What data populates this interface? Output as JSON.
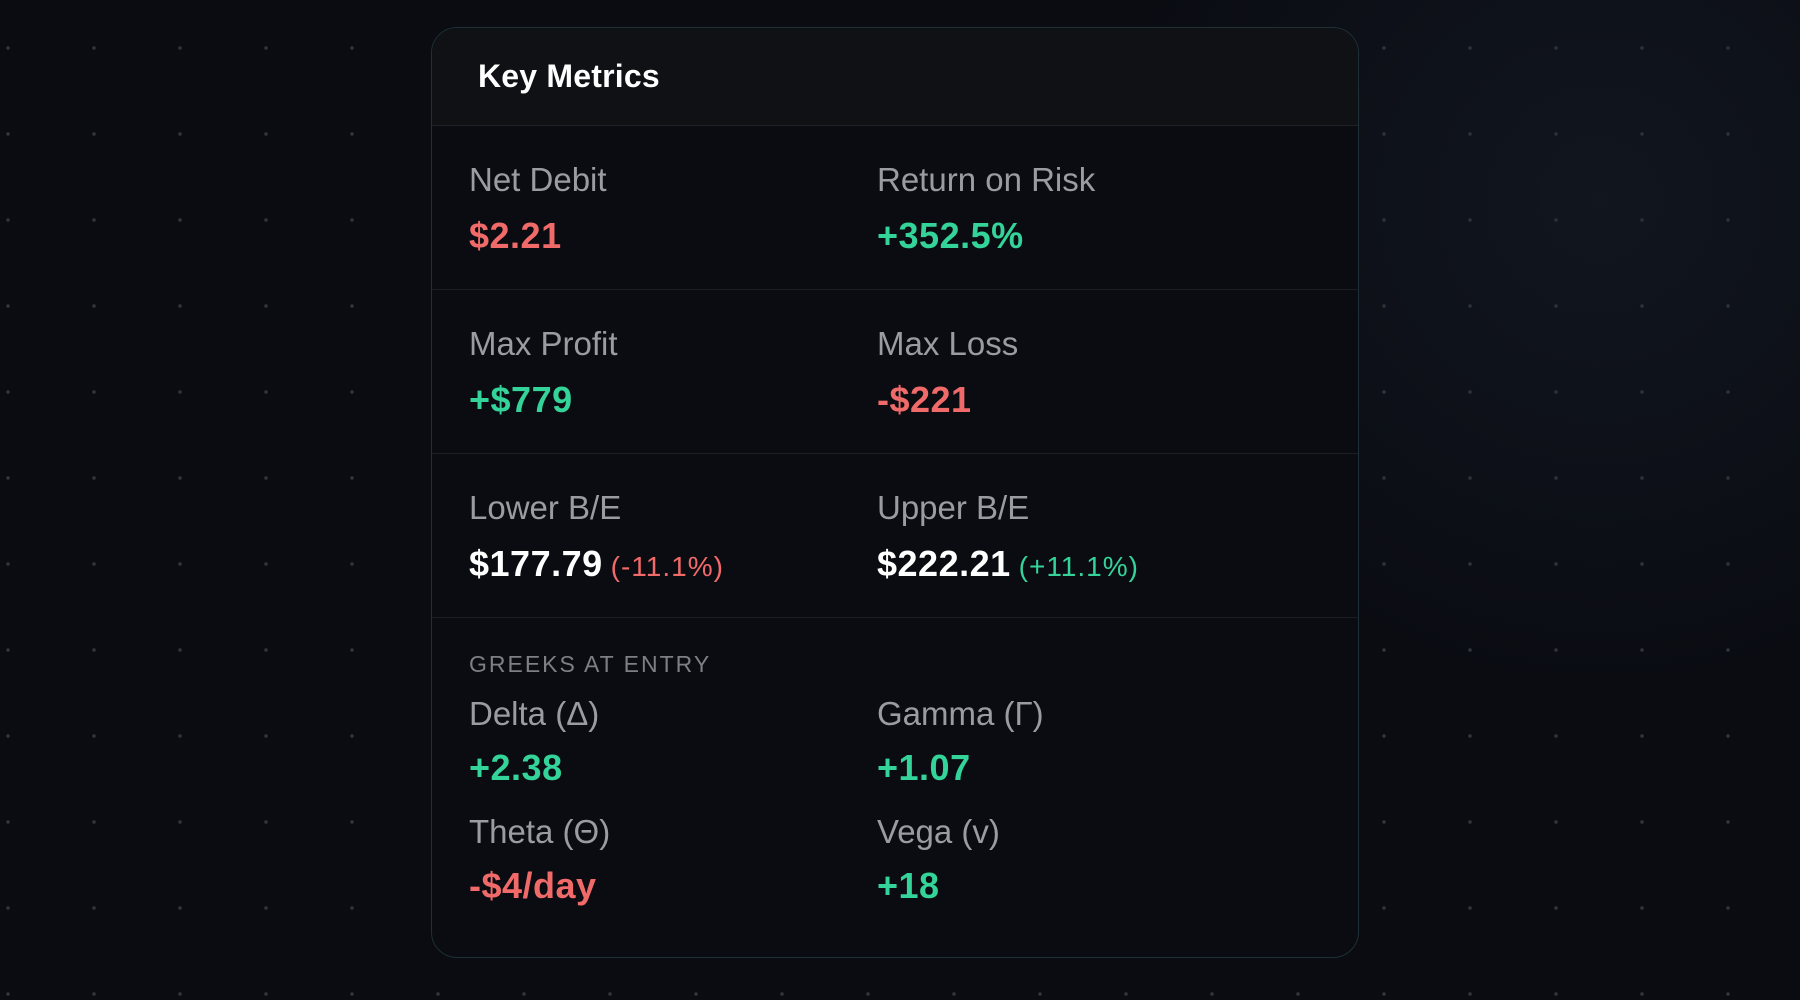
{
  "card": {
    "title": "Key Metrics"
  },
  "metrics": {
    "net_debit": {
      "label": "Net Debit",
      "value": "$2.21",
      "tone": "negative"
    },
    "return_on_risk": {
      "label": "Return on Risk",
      "value": "+352.5%",
      "tone": "positive"
    },
    "max_profit": {
      "label": "Max Profit",
      "value": "+$779",
      "tone": "positive"
    },
    "max_loss": {
      "label": "Max Loss",
      "value": "-$221",
      "tone": "negative"
    },
    "lower_be": {
      "label": "Lower B/E",
      "value": "$177.79",
      "change": "(-11.1%)",
      "change_tone": "negative"
    },
    "upper_be": {
      "label": "Upper B/E",
      "value": "$222.21",
      "change": "(+11.1%)",
      "change_tone": "positive"
    }
  },
  "greeks": {
    "section_label": "GREEKS AT ENTRY",
    "delta": {
      "label": "Delta (Δ)",
      "value": "+2.38",
      "tone": "positive"
    },
    "gamma": {
      "label": "Gamma (Γ)",
      "value": "+1.07",
      "tone": "positive"
    },
    "theta": {
      "label": "Theta (Θ)",
      "value": "-$4/day",
      "tone": "negative"
    },
    "vega": {
      "label": "Vega (v)",
      "value": "+18",
      "tone": "positive"
    }
  },
  "colors": {
    "positive": "#34d399",
    "negative": "#f06a6a",
    "label": "#9b9ca1",
    "background": "#0a0c12",
    "card_border": "#1d3036"
  }
}
